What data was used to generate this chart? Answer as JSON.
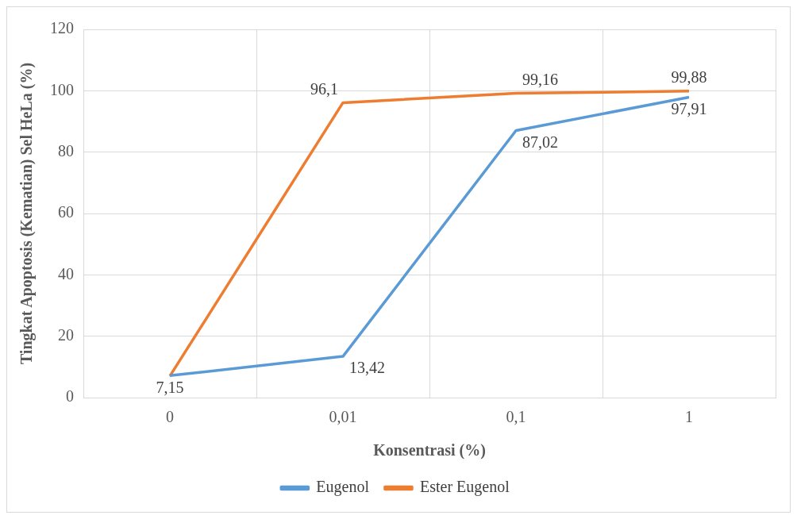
{
  "chart_data": {
    "type": "line",
    "xlabel": "Konsentrasi (%)",
    "ylabel": "Tingkat Apoptosis (Kematian) Sel HeLa (%)",
    "categories": [
      "0",
      "0,01",
      "0,1",
      "1"
    ],
    "series": [
      {
        "name": "Eugenol",
        "color": "#5b9bd5",
        "values": [
          7.15,
          13.42,
          87.02,
          97.91
        ],
        "value_labels": [
          "7,15",
          "13,42",
          "87,02",
          "97,91"
        ]
      },
      {
        "name": "Ester Eugenol",
        "color": "#ed7d31",
        "values": [
          7,
          96.1,
          99.16,
          99.88
        ],
        "value_labels": [
          null,
          "96,1",
          "99,16",
          "99,88"
        ]
      }
    ],
    "ylim": [
      0,
      120
    ],
    "yticks": [
      0,
      20,
      40,
      60,
      80,
      100,
      120
    ],
    "grid": true,
    "legend": "bottom",
    "marker": "none",
    "line_style": "solid"
  }
}
